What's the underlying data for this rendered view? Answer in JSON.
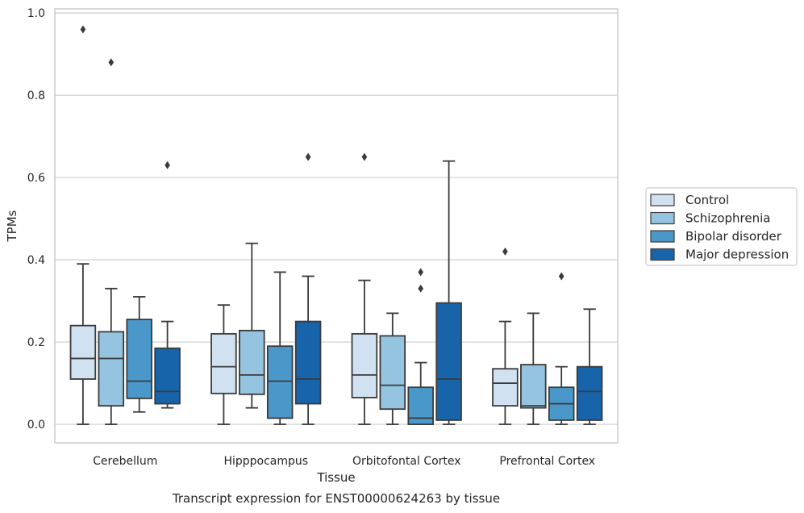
{
  "chart_data": {
    "type": "boxplot",
    "caption": "Transcript expression for ENST00000624263 by tissue",
    "xlabel": "Tissue",
    "ylabel": "TPMs",
    "ylim": [
      -0.045,
      1.01
    ],
    "yticks": [
      0.0,
      0.2,
      0.4,
      0.6,
      0.8,
      1.0
    ],
    "ytick_labels": [
      "0.0",
      "0.2",
      "0.4",
      "0.6",
      "0.8",
      "1.0"
    ],
    "grid": "horizontal",
    "legend_position": "right",
    "categories": [
      "Cerebellum",
      "Hipppocampus",
      "Orbitofontal Cortex",
      "Prefrontal Cortex"
    ],
    "series": [
      {
        "name": "Control",
        "color": "#d0e1f2",
        "boxes": [
          {
            "whisker_low": 0.0,
            "q1": 0.11,
            "median": 0.16,
            "q3": 0.24,
            "whisker_high": 0.39,
            "outliers": [
              0.96
            ]
          },
          {
            "whisker_low": 0.0,
            "q1": 0.075,
            "median": 0.14,
            "q3": 0.22,
            "whisker_high": 0.29,
            "outliers": []
          },
          {
            "whisker_low": 0.0,
            "q1": 0.065,
            "median": 0.12,
            "q3": 0.22,
            "whisker_high": 0.35,
            "outliers": [
              0.65
            ]
          },
          {
            "whisker_low": 0.0,
            "q1": 0.045,
            "median": 0.1,
            "q3": 0.135,
            "whisker_high": 0.25,
            "outliers": [
              0.42
            ]
          }
        ]
      },
      {
        "name": "Schizophrenia",
        "color": "#94c4df",
        "boxes": [
          {
            "whisker_low": 0.0,
            "q1": 0.045,
            "median": 0.16,
            "q3": 0.225,
            "whisker_high": 0.33,
            "outliers": [
              0.88
            ]
          },
          {
            "whisker_low": 0.04,
            "q1": 0.073,
            "median": 0.12,
            "q3": 0.228,
            "whisker_high": 0.44,
            "outliers": []
          },
          {
            "whisker_low": 0.0,
            "q1": 0.037,
            "median": 0.095,
            "q3": 0.215,
            "whisker_high": 0.27,
            "outliers": []
          },
          {
            "whisker_low": 0.0,
            "q1": 0.04,
            "median": 0.045,
            "q3": 0.145,
            "whisker_high": 0.27,
            "outliers": []
          }
        ]
      },
      {
        "name": "Bipolar disorder",
        "color": "#4a98c9",
        "boxes": [
          {
            "whisker_low": 0.03,
            "q1": 0.063,
            "median": 0.105,
            "q3": 0.255,
            "whisker_high": 0.31,
            "outliers": []
          },
          {
            "whisker_low": 0.0,
            "q1": 0.015,
            "median": 0.105,
            "q3": 0.19,
            "whisker_high": 0.37,
            "outliers": []
          },
          {
            "whisker_low": 0.0,
            "q1": 0.0,
            "median": 0.015,
            "q3": 0.09,
            "whisker_high": 0.15,
            "outliers": [
              0.33,
              0.37
            ]
          },
          {
            "whisker_low": 0.0,
            "q1": 0.01,
            "median": 0.05,
            "q3": 0.09,
            "whisker_high": 0.14,
            "outliers": [
              0.36
            ]
          }
        ]
      },
      {
        "name": "Major depression",
        "color": "#1764ab",
        "boxes": [
          {
            "whisker_low": 0.04,
            "q1": 0.05,
            "median": 0.08,
            "q3": 0.185,
            "whisker_high": 0.25,
            "outliers": [
              0.63
            ]
          },
          {
            "whisker_low": 0.0,
            "q1": 0.05,
            "median": 0.11,
            "q3": 0.25,
            "whisker_high": 0.36,
            "outliers": [
              0.65
            ]
          },
          {
            "whisker_low": 0.0,
            "q1": 0.01,
            "median": 0.11,
            "q3": 0.295,
            "whisker_high": 0.64,
            "outliers": []
          },
          {
            "whisker_low": 0.0,
            "q1": 0.01,
            "median": 0.08,
            "q3": 0.14,
            "whisker_high": 0.28,
            "outliers": []
          }
        ]
      }
    ]
  }
}
